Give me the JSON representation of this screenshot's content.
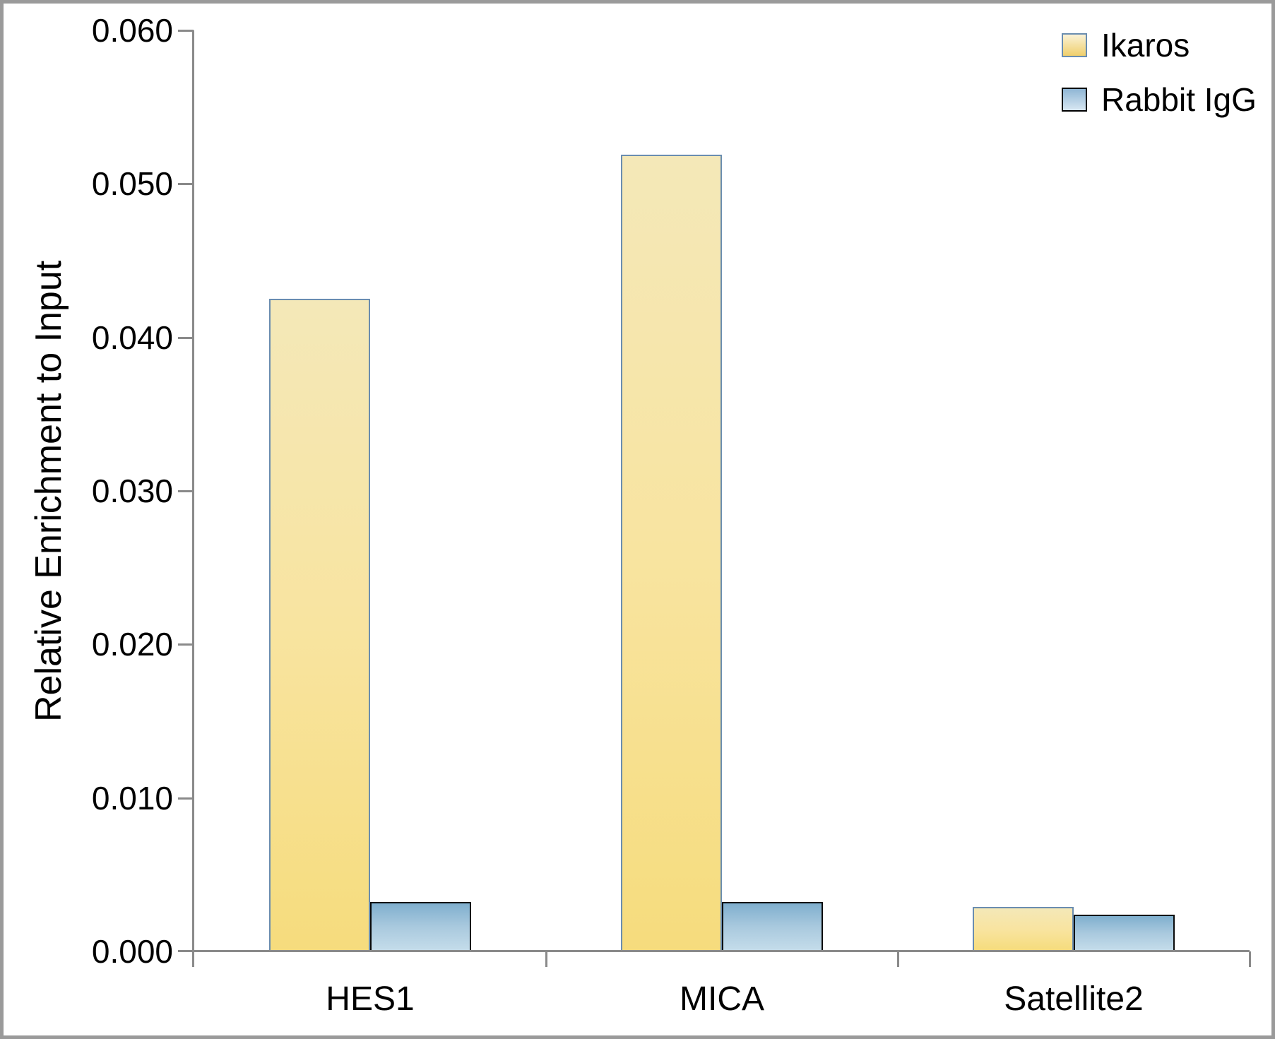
{
  "figure": {
    "frame_color": "#9A9A9A",
    "background": "#FFFFFF",
    "axis_color": "#8A8A8A",
    "text_color": "#000000"
  },
  "chart_data": {
    "type": "bar",
    "title": "",
    "xlabel": "",
    "ylabel": "Relative Enrichment to Input",
    "categories": [
      "HES1",
      "MICA",
      "Satellite2"
    ],
    "series": [
      {
        "name": "Ikaros",
        "values": [
          0.0425,
          0.0519,
          0.0029
        ],
        "bar_fill_top": "#F4E8B8",
        "bar_fill_mid": "#F8E4A0",
        "bar_fill_bottom": "#F6DC7D",
        "bar_border": "#6A8DB0",
        "swatch_fill_top": "#FAF2D6",
        "swatch_fill_bottom": "#EFCF6C",
        "swatch_border": "#6A8DB0"
      },
      {
        "name": "Rabbit IgG",
        "values": [
          0.0032,
          0.0032,
          0.0024
        ],
        "bar_fill_top": "#7FAFCE",
        "bar_fill_mid": "#A9C9DE",
        "bar_fill_bottom": "#C4DCEA",
        "bar_border": "#0A0A0A",
        "swatch_fill_top": "#8FB6D4",
        "swatch_fill_bottom": "#D8E7F2",
        "swatch_border": "#000000"
      }
    ],
    "ylim": [
      0,
      0.06
    ],
    "ytick_step": 0.01,
    "ytick_labels": [
      "0.000",
      "0.010",
      "0.020",
      "0.030",
      "0.040",
      "0.050",
      "0.060"
    ],
    "grid": false,
    "legend_position": "top-right"
  }
}
